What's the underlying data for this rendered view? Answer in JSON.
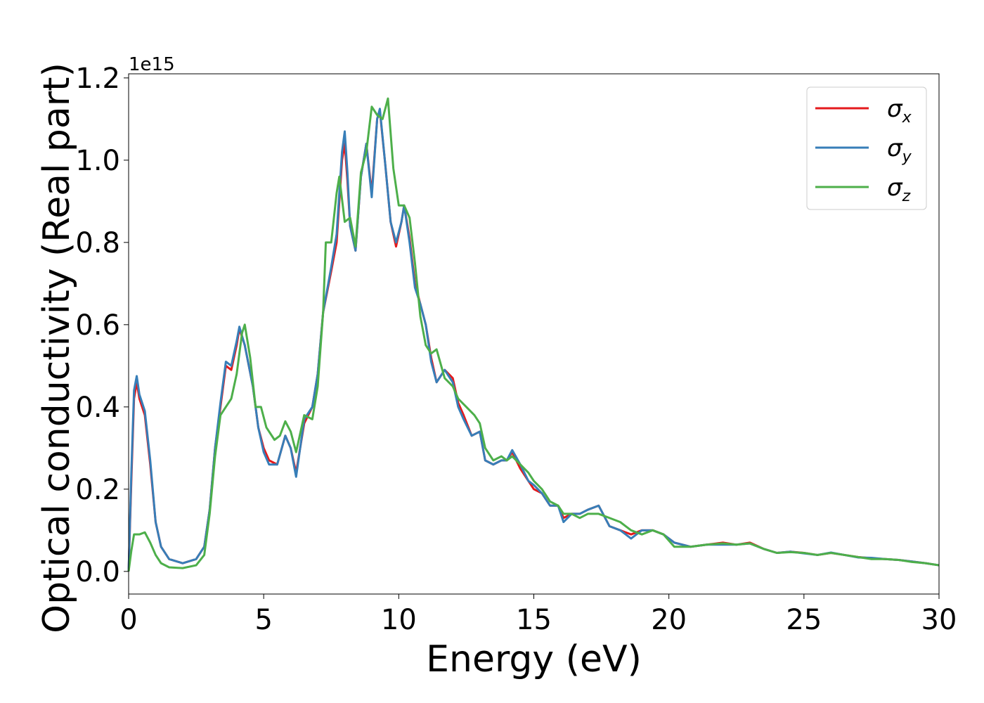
{
  "chart_data": {
    "type": "line",
    "xlabel": "Energy (eV)",
    "ylabel": "Optical conductivity (Real part)",
    "y_offset_text": "1e15",
    "y_scale_factor": 1000000000000000.0,
    "xlim": [
      0,
      30
    ],
    "ylim": [
      -0.055,
      1.21
    ],
    "x_ticks": [
      0,
      5,
      10,
      15,
      20,
      25,
      30
    ],
    "x_tick_labels": [
      "0",
      "5",
      "10",
      "15",
      "20",
      "25",
      "30"
    ],
    "y_ticks": [
      0.0,
      0.2,
      0.4,
      0.6,
      0.8,
      1.0,
      1.2
    ],
    "y_tick_labels": [
      "0.0",
      "0.2",
      "0.4",
      "0.6",
      "0.8",
      "1.0",
      "1.2"
    ],
    "grid": false,
    "legend_position": "top-right",
    "series": [
      {
        "name": "σx",
        "symbol": "σ",
        "subscript": "x",
        "color": "#e41a1c",
        "points": [
          [
            0,
            0.0
          ],
          [
            0.1,
            0.22
          ],
          [
            0.2,
            0.42
          ],
          [
            0.3,
            0.46
          ],
          [
            0.4,
            0.42
          ],
          [
            0.6,
            0.38
          ],
          [
            0.8,
            0.26
          ],
          [
            1.0,
            0.12
          ],
          [
            1.2,
            0.06
          ],
          [
            1.5,
            0.03
          ],
          [
            2.0,
            0.02
          ],
          [
            2.5,
            0.03
          ],
          [
            2.8,
            0.06
          ],
          [
            3.0,
            0.15
          ],
          [
            3.2,
            0.3
          ],
          [
            3.4,
            0.4
          ],
          [
            3.6,
            0.5
          ],
          [
            3.8,
            0.49
          ],
          [
            4.0,
            0.55
          ],
          [
            4.1,
            0.59
          ],
          [
            4.3,
            0.55
          ],
          [
            4.6,
            0.45
          ],
          [
            4.8,
            0.35
          ],
          [
            5.0,
            0.3
          ],
          [
            5.2,
            0.27
          ],
          [
            5.5,
            0.26
          ],
          [
            5.8,
            0.33
          ],
          [
            6.0,
            0.3
          ],
          [
            6.2,
            0.24
          ],
          [
            6.5,
            0.36
          ],
          [
            6.8,
            0.4
          ],
          [
            7.0,
            0.48
          ],
          [
            7.2,
            0.63
          ],
          [
            7.5,
            0.73
          ],
          [
            7.7,
            0.8
          ],
          [
            7.9,
            1.0
          ],
          [
            8.0,
            1.04
          ],
          [
            8.1,
            0.95
          ],
          [
            8.2,
            0.84
          ],
          [
            8.4,
            0.78
          ],
          [
            8.6,
            0.96
          ],
          [
            8.8,
            1.04
          ],
          [
            9.0,
            0.92
          ],
          [
            9.2,
            1.1
          ],
          [
            9.3,
            1.12
          ],
          [
            9.5,
            0.99
          ],
          [
            9.7,
            0.85
          ],
          [
            9.9,
            0.79
          ],
          [
            10.1,
            0.85
          ],
          [
            10.2,
            0.89
          ],
          [
            10.4,
            0.81
          ],
          [
            10.6,
            0.7
          ],
          [
            10.8,
            0.65
          ],
          [
            11.0,
            0.6
          ],
          [
            11.2,
            0.52
          ],
          [
            11.4,
            0.46
          ],
          [
            11.7,
            0.49
          ],
          [
            12.0,
            0.47
          ],
          [
            12.2,
            0.41
          ],
          [
            12.4,
            0.38
          ],
          [
            12.7,
            0.33
          ],
          [
            13.0,
            0.34
          ],
          [
            13.2,
            0.27
          ],
          [
            13.5,
            0.26
          ],
          [
            13.8,
            0.27
          ],
          [
            14.0,
            0.27
          ],
          [
            14.2,
            0.29
          ],
          [
            14.5,
            0.25
          ],
          [
            14.8,
            0.22
          ],
          [
            15.0,
            0.2
          ],
          [
            15.3,
            0.19
          ],
          [
            15.6,
            0.16
          ],
          [
            15.9,
            0.16
          ],
          [
            16.1,
            0.13
          ],
          [
            16.4,
            0.14
          ],
          [
            16.7,
            0.14
          ],
          [
            17.0,
            0.15
          ],
          [
            17.4,
            0.16
          ],
          [
            17.8,
            0.11
          ],
          [
            18.2,
            0.1
          ],
          [
            18.6,
            0.09
          ],
          [
            19.0,
            0.1
          ],
          [
            19.4,
            0.1
          ],
          [
            19.8,
            0.09
          ],
          [
            20.2,
            0.07
          ],
          [
            20.8,
            0.06
          ],
          [
            21.4,
            0.065
          ],
          [
            22.0,
            0.07
          ],
          [
            22.5,
            0.065
          ],
          [
            23.0,
            0.07
          ],
          [
            23.5,
            0.055
          ],
          [
            24.0,
            0.045
          ],
          [
            24.5,
            0.048
          ],
          [
            25.0,
            0.045
          ],
          [
            25.5,
            0.04
          ],
          [
            26.0,
            0.045
          ],
          [
            26.5,
            0.04
          ],
          [
            27.0,
            0.035
          ],
          [
            27.5,
            0.032
          ],
          [
            28.0,
            0.03
          ],
          [
            28.5,
            0.028
          ],
          [
            29.0,
            0.024
          ],
          [
            29.5,
            0.02
          ],
          [
            30.0,
            0.015
          ]
        ]
      },
      {
        "name": "σy",
        "symbol": "σ",
        "subscript": "y",
        "color": "#377eb8",
        "points": [
          [
            0,
            0.0
          ],
          [
            0.1,
            0.24
          ],
          [
            0.2,
            0.44
          ],
          [
            0.3,
            0.475
          ],
          [
            0.4,
            0.43
          ],
          [
            0.6,
            0.39
          ],
          [
            0.8,
            0.27
          ],
          [
            1.0,
            0.12
          ],
          [
            1.2,
            0.06
          ],
          [
            1.5,
            0.03
          ],
          [
            2.0,
            0.02
          ],
          [
            2.5,
            0.03
          ],
          [
            2.8,
            0.06
          ],
          [
            3.0,
            0.15
          ],
          [
            3.2,
            0.3
          ],
          [
            3.4,
            0.41
          ],
          [
            3.6,
            0.51
          ],
          [
            3.8,
            0.5
          ],
          [
            4.0,
            0.56
          ],
          [
            4.1,
            0.595
          ],
          [
            4.3,
            0.55
          ],
          [
            4.6,
            0.45
          ],
          [
            4.8,
            0.35
          ],
          [
            5.0,
            0.29
          ],
          [
            5.2,
            0.26
          ],
          [
            5.5,
            0.26
          ],
          [
            5.8,
            0.33
          ],
          [
            6.0,
            0.3
          ],
          [
            6.2,
            0.23
          ],
          [
            6.5,
            0.37
          ],
          [
            6.8,
            0.4
          ],
          [
            7.0,
            0.48
          ],
          [
            7.2,
            0.63
          ],
          [
            7.5,
            0.74
          ],
          [
            7.7,
            0.82
          ],
          [
            7.9,
            1.02
          ],
          [
            8.0,
            1.07
          ],
          [
            8.1,
            0.97
          ],
          [
            8.2,
            0.84
          ],
          [
            8.4,
            0.78
          ],
          [
            8.6,
            0.96
          ],
          [
            8.8,
            1.04
          ],
          [
            9.0,
            0.91
          ],
          [
            9.2,
            1.1
          ],
          [
            9.3,
            1.125
          ],
          [
            9.5,
            0.99
          ],
          [
            9.7,
            0.85
          ],
          [
            9.9,
            0.8
          ],
          [
            10.1,
            0.85
          ],
          [
            10.2,
            0.89
          ],
          [
            10.4,
            0.8
          ],
          [
            10.6,
            0.69
          ],
          [
            10.8,
            0.65
          ],
          [
            11.0,
            0.6
          ],
          [
            11.2,
            0.51
          ],
          [
            11.4,
            0.46
          ],
          [
            11.7,
            0.49
          ],
          [
            12.0,
            0.46
          ],
          [
            12.2,
            0.4
          ],
          [
            12.4,
            0.37
          ],
          [
            12.7,
            0.33
          ],
          [
            13.0,
            0.34
          ],
          [
            13.2,
            0.27
          ],
          [
            13.5,
            0.26
          ],
          [
            13.8,
            0.27
          ],
          [
            14.0,
            0.27
          ],
          [
            14.2,
            0.295
          ],
          [
            14.5,
            0.26
          ],
          [
            14.8,
            0.22
          ],
          [
            15.0,
            0.21
          ],
          [
            15.3,
            0.19
          ],
          [
            15.6,
            0.16
          ],
          [
            15.9,
            0.16
          ],
          [
            16.1,
            0.12
          ],
          [
            16.4,
            0.14
          ],
          [
            16.7,
            0.14
          ],
          [
            17.0,
            0.15
          ],
          [
            17.4,
            0.16
          ],
          [
            17.8,
            0.11
          ],
          [
            18.2,
            0.1
          ],
          [
            18.6,
            0.08
          ],
          [
            19.0,
            0.1
          ],
          [
            19.4,
            0.1
          ],
          [
            19.8,
            0.09
          ],
          [
            20.2,
            0.07
          ],
          [
            20.8,
            0.06
          ],
          [
            21.4,
            0.065
          ],
          [
            22.0,
            0.065
          ],
          [
            22.5,
            0.065
          ],
          [
            23.0,
            0.068
          ],
          [
            23.5,
            0.055
          ],
          [
            24.0,
            0.045
          ],
          [
            24.5,
            0.048
          ],
          [
            25.0,
            0.044
          ],
          [
            25.5,
            0.04
          ],
          [
            26.0,
            0.046
          ],
          [
            26.5,
            0.04
          ],
          [
            27.0,
            0.034
          ],
          [
            27.5,
            0.033
          ],
          [
            28.0,
            0.03
          ],
          [
            28.5,
            0.028
          ],
          [
            29.0,
            0.024
          ],
          [
            29.5,
            0.02
          ],
          [
            30.0,
            0.015
          ]
        ]
      },
      {
        "name": "σz",
        "symbol": "σ",
        "subscript": "z",
        "color": "#4daf4a",
        "points": [
          [
            0,
            0.0
          ],
          [
            0.1,
            0.05
          ],
          [
            0.2,
            0.09
          ],
          [
            0.4,
            0.09
          ],
          [
            0.6,
            0.095
          ],
          [
            0.8,
            0.07
          ],
          [
            1.0,
            0.04
          ],
          [
            1.2,
            0.02
          ],
          [
            1.5,
            0.01
          ],
          [
            2.0,
            0.008
          ],
          [
            2.5,
            0.015
          ],
          [
            2.8,
            0.04
          ],
          [
            3.0,
            0.14
          ],
          [
            3.2,
            0.28
          ],
          [
            3.4,
            0.38
          ],
          [
            3.6,
            0.4
          ],
          [
            3.8,
            0.42
          ],
          [
            4.0,
            0.48
          ],
          [
            4.2,
            0.58
          ],
          [
            4.3,
            0.6
          ],
          [
            4.5,
            0.52
          ],
          [
            4.7,
            0.4
          ],
          [
            4.9,
            0.4
          ],
          [
            5.1,
            0.35
          ],
          [
            5.4,
            0.32
          ],
          [
            5.6,
            0.33
          ],
          [
            5.8,
            0.365
          ],
          [
            6.0,
            0.34
          ],
          [
            6.2,
            0.29
          ],
          [
            6.5,
            0.38
          ],
          [
            6.8,
            0.37
          ],
          [
            7.0,
            0.45
          ],
          [
            7.2,
            0.63
          ],
          [
            7.3,
            0.8
          ],
          [
            7.5,
            0.8
          ],
          [
            7.7,
            0.92
          ],
          [
            7.8,
            0.96
          ],
          [
            8.0,
            0.85
          ],
          [
            8.2,
            0.86
          ],
          [
            8.4,
            0.79
          ],
          [
            8.6,
            0.97
          ],
          [
            8.8,
            1.02
          ],
          [
            9.0,
            1.13
          ],
          [
            9.2,
            1.11
          ],
          [
            9.4,
            1.1
          ],
          [
            9.6,
            1.15
          ],
          [
            9.8,
            0.98
          ],
          [
            10.0,
            0.89
          ],
          [
            10.2,
            0.89
          ],
          [
            10.4,
            0.86
          ],
          [
            10.6,
            0.75
          ],
          [
            10.8,
            0.62
          ],
          [
            11.0,
            0.55
          ],
          [
            11.2,
            0.53
          ],
          [
            11.4,
            0.54
          ],
          [
            11.7,
            0.47
          ],
          [
            12.0,
            0.45
          ],
          [
            12.2,
            0.42
          ],
          [
            12.5,
            0.4
          ],
          [
            12.8,
            0.38
          ],
          [
            13.0,
            0.36
          ],
          [
            13.2,
            0.3
          ],
          [
            13.5,
            0.27
          ],
          [
            13.8,
            0.28
          ],
          [
            14.0,
            0.27
          ],
          [
            14.2,
            0.28
          ],
          [
            14.5,
            0.26
          ],
          [
            14.8,
            0.24
          ],
          [
            15.0,
            0.22
          ],
          [
            15.3,
            0.2
          ],
          [
            15.6,
            0.17
          ],
          [
            15.9,
            0.16
          ],
          [
            16.1,
            0.14
          ],
          [
            16.4,
            0.14
          ],
          [
            16.7,
            0.13
          ],
          [
            17.0,
            0.14
          ],
          [
            17.4,
            0.14
          ],
          [
            17.8,
            0.13
          ],
          [
            18.2,
            0.12
          ],
          [
            18.6,
            0.1
          ],
          [
            19.0,
            0.09
          ],
          [
            19.4,
            0.1
          ],
          [
            19.8,
            0.09
          ],
          [
            20.2,
            0.06
          ],
          [
            20.8,
            0.06
          ],
          [
            21.4,
            0.065
          ],
          [
            22.0,
            0.068
          ],
          [
            22.5,
            0.065
          ],
          [
            23.0,
            0.068
          ],
          [
            23.5,
            0.055
          ],
          [
            24.0,
            0.045
          ],
          [
            24.5,
            0.047
          ],
          [
            25.0,
            0.045
          ],
          [
            25.5,
            0.04
          ],
          [
            26.0,
            0.045
          ],
          [
            26.5,
            0.04
          ],
          [
            27.0,
            0.035
          ],
          [
            27.5,
            0.03
          ],
          [
            28.0,
            0.03
          ],
          [
            28.5,
            0.028
          ],
          [
            29.0,
            0.023
          ],
          [
            29.5,
            0.02
          ],
          [
            30.0,
            0.015
          ]
        ]
      }
    ]
  }
}
